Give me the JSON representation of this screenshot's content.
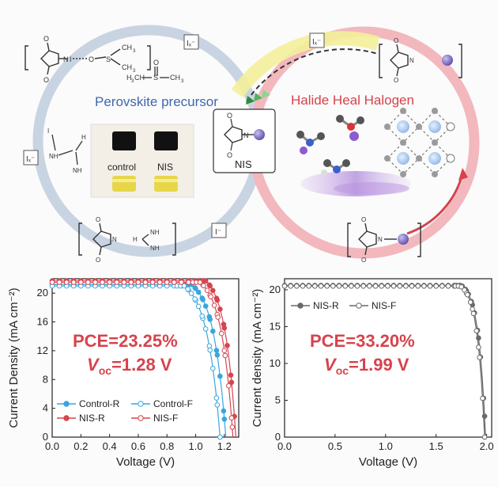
{
  "top": {
    "left_ring_title": "Perovskite precursor",
    "right_ring_title": "Halide Heal Halogen",
    "vial_labels": [
      "control",
      "NIS"
    ],
    "nis_box_label": "NIS",
    "mol_labels": {
      "sulfur": "S",
      "ch3": "CH",
      "h3c": "H",
      "o": "O",
      "n": "N",
      "i": "I",
      "nh2": "NH",
      "nh3": "NH",
      "h": "H",
      "sub2": "2",
      "sub3": "3"
    },
    "ion_symbols": [
      "Iₓ⁻",
      "Iₓ⁻",
      "Iₓ⁻",
      "I⁻"
    ],
    "colors": {
      "left_ring": "#c9d4e2",
      "right_ring": "#f2b8bd",
      "arrow_yellow": "#f4ef9a",
      "iodine": "#7d6cc0",
      "accent_red": "#d6434c"
    }
  },
  "chart_data": [
    {
      "type": "line",
      "xlabel": "Voltage (V)",
      "ylabel": "Current Density (mA cm⁻²)",
      "xlim": [
        0,
        1.3
      ],
      "ylim": [
        0,
        22
      ],
      "xticks": [
        "0.0",
        "0.2",
        "0.4",
        "0.6",
        "0.8",
        "1.0",
        "1.2"
      ],
      "yticks": [
        "0",
        "4",
        "8",
        "12",
        "16",
        "20"
      ],
      "annotation_pce": "PCE=23.25%",
      "annotation_voc_sym": "V",
      "annotation_voc_sub": "oc",
      "annotation_voc_val": "=1.28 V",
      "legend": "bottom-left",
      "series": [
        {
          "name": "Control-R",
          "color": "#3aa6dd",
          "marker": "filled",
          "jsc": 21.2,
          "voc": 1.21,
          "vmp": 0.97,
          "n": 0.085
        },
        {
          "name": "Control-F",
          "color": "#3aa6dd",
          "marker": "open",
          "jsc": 21.0,
          "voc": 1.17,
          "vmp": 0.92,
          "n": 0.09
        },
        {
          "name": "NIS-R",
          "color": "#d64550",
          "marker": "filled",
          "jsc": 21.7,
          "voc": 1.28,
          "vmp": 1.07,
          "n": 0.075
        },
        {
          "name": "NIS-F",
          "color": "#d64550",
          "marker": "open",
          "jsc": 21.5,
          "voc": 1.26,
          "vmp": 1.03,
          "n": 0.08
        }
      ]
    },
    {
      "type": "line",
      "xlabel": "Voltage (V)",
      "ylabel": "Current density (mA cm⁻²)",
      "xlim": [
        0,
        2.05
      ],
      "ylim": [
        0,
        21.5
      ],
      "xticks": [
        "0.0",
        "0.5",
        "1.0",
        "1.5",
        "2.0"
      ],
      "yticks": [
        "0",
        "5",
        "10",
        "15",
        "20"
      ],
      "annotation_pce": "PCE=33.20%",
      "annotation_voc_sym": "V",
      "annotation_voc_sub": "oc",
      "annotation_voc_val": "=1.99 V",
      "legend": "top-left",
      "series": [
        {
          "name": "NIS-R",
          "color": "#6a6a6a",
          "marker": "filled",
          "jsc": 20.6,
          "voc": 1.99,
          "vmp": 1.75,
          "n": 0.07
        },
        {
          "name": "NIS-F",
          "color": "#6a6a6a",
          "marker": "open",
          "jsc": 20.5,
          "voc": 1.98,
          "vmp": 1.74,
          "n": 0.07
        }
      ]
    }
  ]
}
